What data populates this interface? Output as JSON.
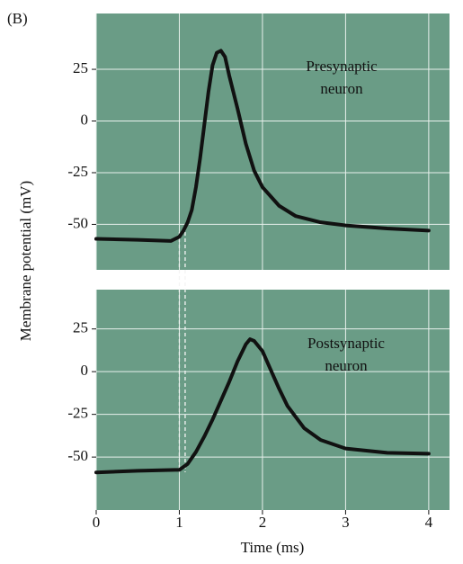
{
  "label": "(B)",
  "dashed_x": [
    1,
    1.07
  ],
  "chart_data": [
    {
      "type": "line",
      "ylabel": "Membrane potential (mV)",
      "annotation": [
        "Presynaptic",
        "neuron"
      ],
      "xlim": [
        0,
        4.25
      ],
      "ylim": [
        -72,
        52
      ],
      "yticks": [
        25,
        0,
        -25,
        -50
      ],
      "grid": true,
      "background": "#6a9c86",
      "color": "#111111",
      "x": [
        0,
        0.5,
        0.9,
        1.0,
        1.05,
        1.1,
        1.15,
        1.2,
        1.25,
        1.3,
        1.35,
        1.4,
        1.45,
        1.5,
        1.55,
        1.6,
        1.7,
        1.8,
        1.9,
        2.0,
        2.2,
        2.4,
        2.7,
        3.0,
        3.5,
        4.0
      ],
      "values": [
        -57,
        -57.5,
        -58,
        -56,
        -53,
        -49,
        -43,
        -32,
        -18,
        -2,
        14,
        27,
        33,
        34,
        31,
        22,
        6,
        -11,
        -24,
        -32,
        -41,
        -46,
        -49,
        -50.5,
        -52,
        -53
      ]
    },
    {
      "type": "line",
      "xlabel": "Time (ms)",
      "annotation": [
        "Postsynaptic",
        "neuron"
      ],
      "xlim": [
        0,
        4.25
      ],
      "xticks": [
        0,
        1,
        2,
        3,
        4
      ],
      "ylim": [
        -81,
        48
      ],
      "yticks": [
        25,
        0,
        -25,
        -50
      ],
      "grid": true,
      "background": "#6a9c86",
      "color": "#111111",
      "x": [
        0,
        0.5,
        0.95,
        1.0,
        1.1,
        1.2,
        1.3,
        1.4,
        1.5,
        1.6,
        1.7,
        1.8,
        1.85,
        1.9,
        2.0,
        2.1,
        2.2,
        2.3,
        2.5,
        2.7,
        3.0,
        3.5,
        4.0
      ],
      "values": [
        -59,
        -58,
        -57.5,
        -57.5,
        -54,
        -47,
        -38,
        -28,
        -17,
        -6,
        6,
        16,
        19,
        18,
        12,
        1,
        -10,
        -20,
        -33,
        -40,
        -45,
        -47.5,
        -48
      ]
    }
  ]
}
